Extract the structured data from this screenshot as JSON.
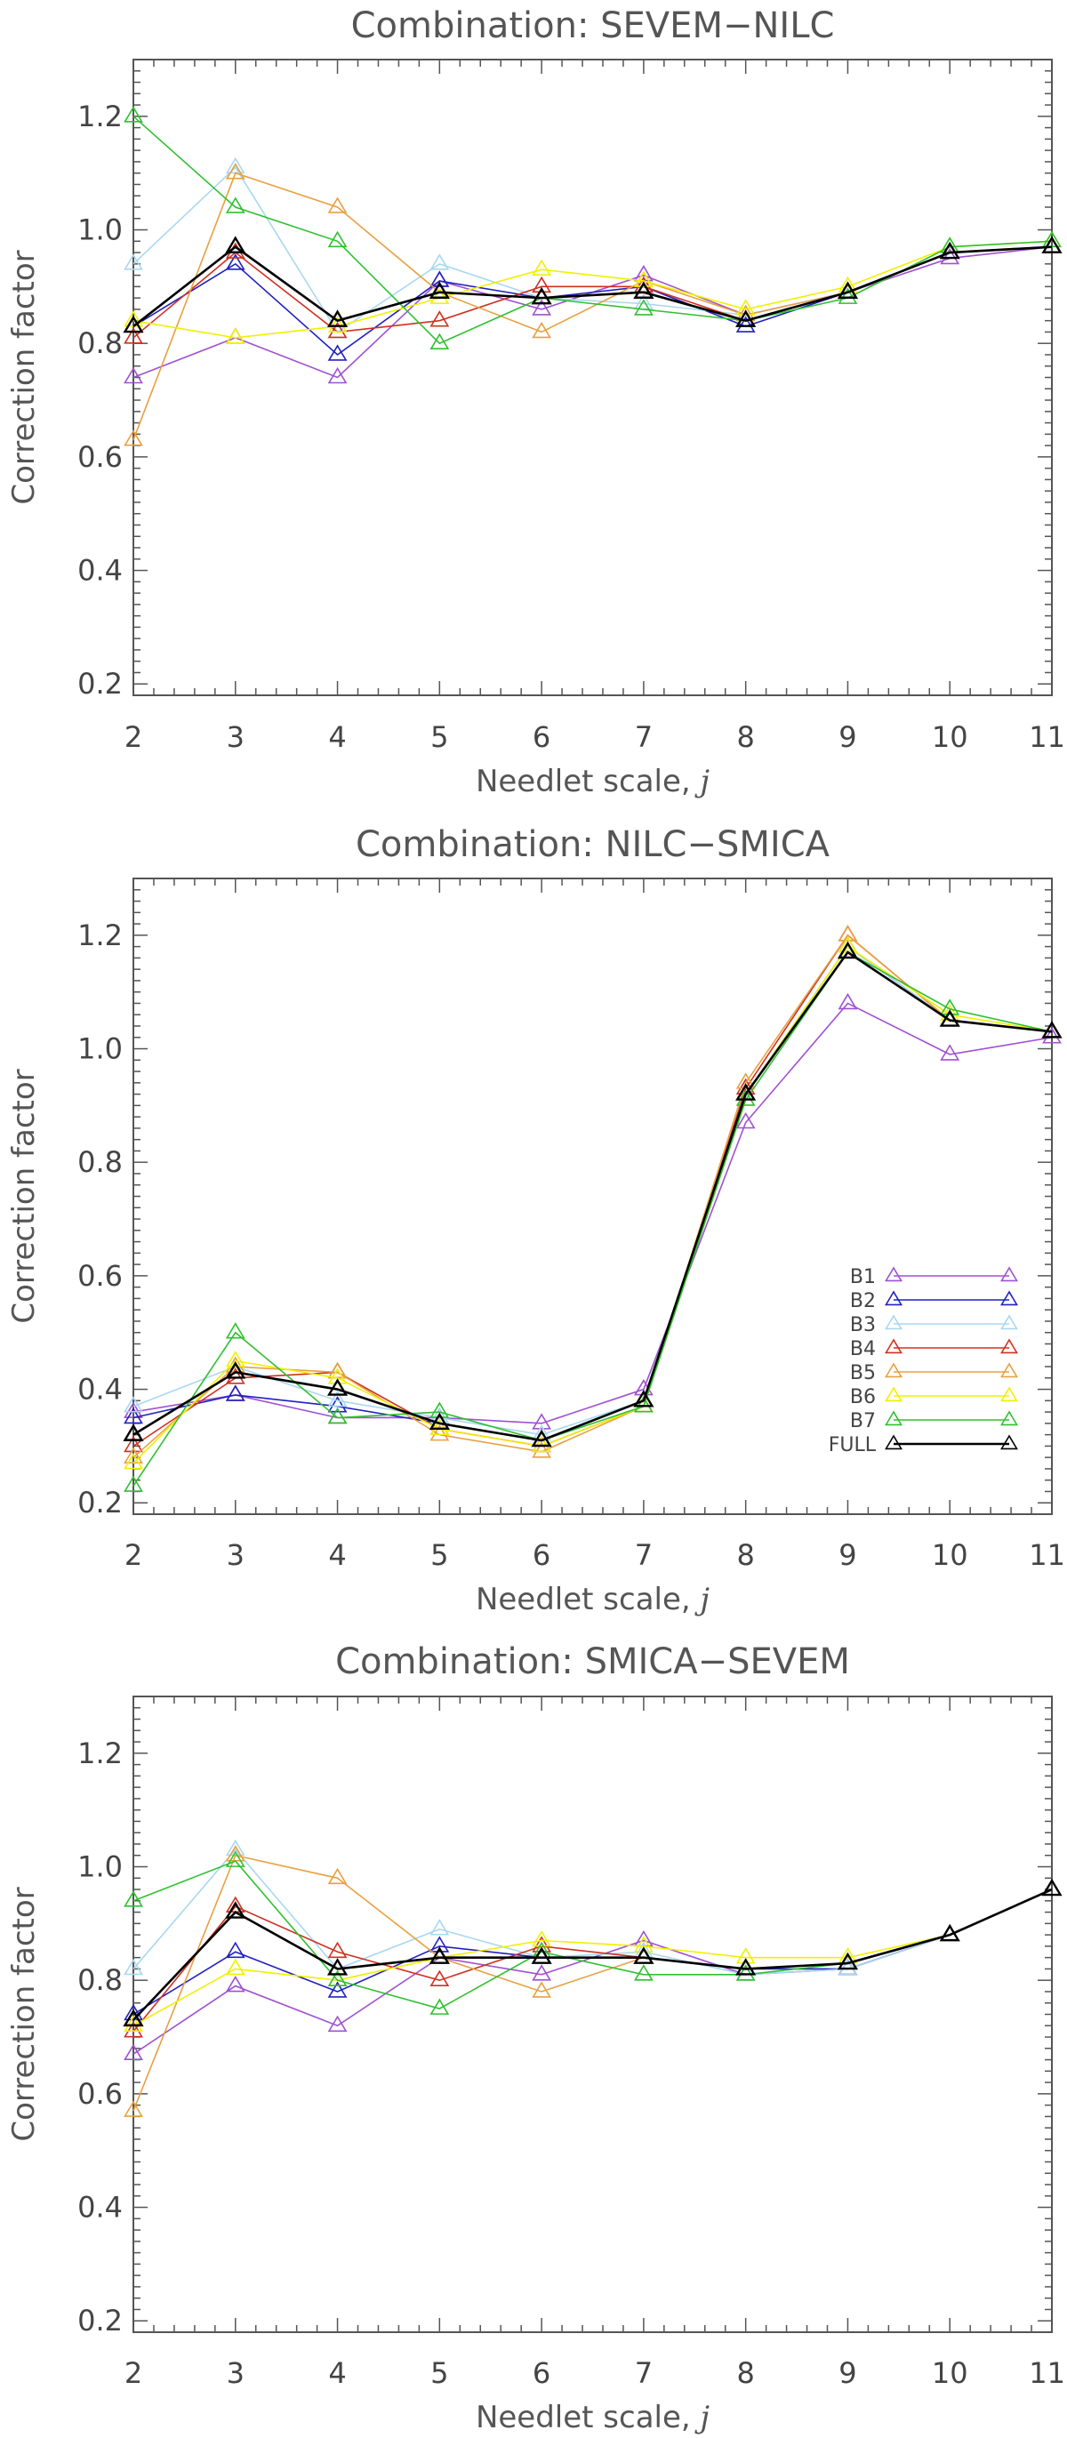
{
  "chart_data": [
    {
      "type": "line",
      "title": "Combination:  SEVEM−NILC",
      "xlabel": "Needlet scale, ",
      "xlabel_var": "j",
      "ylabel": "Correction factor",
      "x": [
        2,
        3,
        4,
        5,
        6,
        7,
        8,
        9,
        10,
        11
      ],
      "xlim": [
        2,
        11
      ],
      "ylim": [
        0.18,
        1.3
      ],
      "yticks": [
        "0.2",
        "0.4",
        "0.6",
        "0.8",
        "1.0",
        "1.2"
      ],
      "xticks": [
        "2",
        "3",
        "4",
        "5",
        "6",
        "7",
        "8",
        "9",
        "10",
        "11"
      ],
      "legend": false,
      "series": [
        {
          "name": "B1",
          "color": "#a050d0",
          "values": [
            0.74,
            0.81,
            0.74,
            0.91,
            0.86,
            0.92,
            0.85,
            0.89,
            0.95,
            0.97
          ]
        },
        {
          "name": "B2",
          "color": "#2020c0",
          "values": [
            0.83,
            0.94,
            0.78,
            0.91,
            0.88,
            0.9,
            0.83,
            0.89,
            0.96,
            0.97
          ]
        },
        {
          "name": "B3",
          "color": "#a8d8f0",
          "values": [
            0.94,
            1.11,
            0.82,
            0.94,
            0.88,
            0.87,
            0.85,
            0.89,
            0.96,
            0.97
          ]
        },
        {
          "name": "B4",
          "color": "#d03020",
          "values": [
            0.81,
            0.96,
            0.82,
            0.84,
            0.9,
            0.9,
            0.84,
            0.89,
            0.96,
            0.97
          ]
        },
        {
          "name": "B5",
          "color": "#e8a040",
          "values": [
            0.63,
            1.1,
            1.04,
            0.89,
            0.82,
            0.91,
            0.85,
            0.89,
            0.96,
            0.97
          ]
        },
        {
          "name": "B6",
          "color": "#f0f000",
          "values": [
            0.84,
            0.81,
            0.83,
            0.88,
            0.93,
            0.91,
            0.86,
            0.9,
            0.97,
            0.98
          ]
        },
        {
          "name": "B7",
          "color": "#30c030",
          "values": [
            1.2,
            1.04,
            0.98,
            0.8,
            0.88,
            0.86,
            0.84,
            0.88,
            0.97,
            0.98
          ]
        },
        {
          "name": "FULL",
          "color": "#000000",
          "values": [
            0.83,
            0.97,
            0.84,
            0.89,
            0.88,
            0.89,
            0.84,
            0.89,
            0.96,
            0.97
          ]
        }
      ]
    },
    {
      "type": "line",
      "title": "Combination:  NILC−SMICA",
      "xlabel": "Needlet scale, ",
      "xlabel_var": "j",
      "ylabel": "Correction factor",
      "x": [
        2,
        3,
        4,
        5,
        6,
        7,
        8,
        9,
        10,
        11
      ],
      "xlim": [
        2,
        11
      ],
      "ylim": [
        0.18,
        1.3
      ],
      "yticks": [
        "0.2",
        "0.4",
        "0.6",
        "0.8",
        "1.0",
        "1.2"
      ],
      "xticks": [
        "2",
        "3",
        "4",
        "5",
        "6",
        "7",
        "8",
        "9",
        "10",
        "11"
      ],
      "legend": true,
      "legend_position": "lower-right",
      "series": [
        {
          "name": "B1",
          "color": "#a050d0",
          "values": [
            0.36,
            0.39,
            0.35,
            0.35,
            0.34,
            0.4,
            0.87,
            1.08,
            0.99,
            1.02
          ]
        },
        {
          "name": "B2",
          "color": "#2020c0",
          "values": [
            0.35,
            0.39,
            0.37,
            0.34,
            0.31,
            0.38,
            0.92,
            1.18,
            1.05,
            1.03
          ]
        },
        {
          "name": "B3",
          "color": "#a8d8f0",
          "values": [
            0.37,
            0.44,
            0.38,
            0.35,
            0.32,
            0.38,
            0.92,
            1.18,
            1.05,
            1.03
          ]
        },
        {
          "name": "B4",
          "color": "#d03020",
          "values": [
            0.3,
            0.42,
            0.43,
            0.33,
            0.3,
            0.37,
            0.93,
            1.2,
            1.05,
            1.03
          ]
        },
        {
          "name": "B5",
          "color": "#e8a040",
          "values": [
            0.28,
            0.44,
            0.43,
            0.32,
            0.29,
            0.37,
            0.94,
            1.2,
            1.05,
            1.03
          ]
        },
        {
          "name": "B6",
          "color": "#f0f000",
          "values": [
            0.27,
            0.45,
            0.42,
            0.33,
            0.3,
            0.37,
            0.92,
            1.18,
            1.06,
            1.03
          ]
        },
        {
          "name": "B7",
          "color": "#30c030",
          "values": [
            0.23,
            0.5,
            0.35,
            0.36,
            0.31,
            0.37,
            0.91,
            1.17,
            1.07,
            1.03
          ]
        },
        {
          "name": "FULL",
          "color": "#000000",
          "values": [
            0.32,
            0.43,
            0.4,
            0.34,
            0.31,
            0.38,
            0.92,
            1.17,
            1.05,
            1.03
          ]
        }
      ]
    },
    {
      "type": "line",
      "title": "Combination:  SMICA−SEVEM",
      "xlabel": "Needlet scale, ",
      "xlabel_var": "j",
      "ylabel": "Correction factor",
      "x": [
        2,
        3,
        4,
        5,
        6,
        7,
        8,
        9,
        10,
        11
      ],
      "xlim": [
        2,
        11
      ],
      "ylim": [
        0.18,
        1.3
      ],
      "yticks": [
        "0.2",
        "0.4",
        "0.6",
        "0.8",
        "1.0",
        "1.2"
      ],
      "xticks": [
        "2",
        "3",
        "4",
        "5",
        "6",
        "7",
        "8",
        "9",
        "10",
        "11"
      ],
      "legend": false,
      "series": [
        {
          "name": "B1",
          "color": "#a050d0",
          "values": [
            0.67,
            0.79,
            0.72,
            0.84,
            0.81,
            0.87,
            0.81,
            0.82,
            0.88,
            0.96
          ]
        },
        {
          "name": "B2",
          "color": "#2020c0",
          "values": [
            0.74,
            0.85,
            0.78,
            0.86,
            0.84,
            0.84,
            0.82,
            0.82,
            0.88,
            0.96
          ]
        },
        {
          "name": "B3",
          "color": "#a8d8f0",
          "values": [
            0.82,
            1.03,
            0.82,
            0.89,
            0.84,
            0.85,
            0.81,
            0.82,
            0.88,
            0.96
          ]
        },
        {
          "name": "B4",
          "color": "#d03020",
          "values": [
            0.71,
            0.93,
            0.85,
            0.8,
            0.86,
            0.84,
            0.82,
            0.83,
            0.88,
            0.96
          ]
        },
        {
          "name": "B5",
          "color": "#e8a040",
          "values": [
            0.57,
            1.02,
            0.98,
            0.84,
            0.78,
            0.84,
            0.82,
            0.83,
            0.88,
            0.96
          ]
        },
        {
          "name": "B6",
          "color": "#f0f000",
          "values": [
            0.72,
            0.82,
            0.8,
            0.84,
            0.87,
            0.86,
            0.84,
            0.84,
            0.88,
            0.96
          ]
        },
        {
          "name": "B7",
          "color": "#30c030",
          "values": [
            0.94,
            1.01,
            0.8,
            0.75,
            0.85,
            0.81,
            0.81,
            0.83,
            0.88,
            0.96
          ]
        },
        {
          "name": "FULL",
          "color": "#000000",
          "values": [
            0.73,
            0.92,
            0.82,
            0.84,
            0.84,
            0.84,
            0.82,
            0.83,
            0.88,
            0.96
          ]
        }
      ]
    }
  ]
}
